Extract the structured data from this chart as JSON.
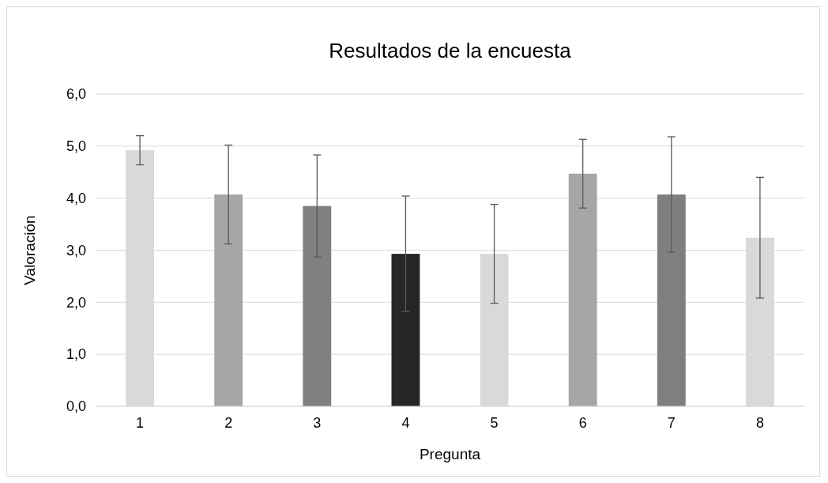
{
  "chart_data": {
    "type": "bar",
    "title": "Resultados de la encuesta",
    "xlabel": "Pregunta",
    "ylabel": "Valoración",
    "categories": [
      "1",
      "2",
      "3",
      "4",
      "5",
      "6",
      "7",
      "8"
    ],
    "values": [
      4.92,
      4.07,
      3.85,
      2.93,
      2.93,
      4.47,
      4.07,
      3.24
    ],
    "errors": [
      0.28,
      0.95,
      0.98,
      1.11,
      0.95,
      0.66,
      1.11,
      1.16
    ],
    "colors": [
      "#d9d9d9",
      "#a6a6a6",
      "#808080",
      "#262626",
      "#d9d9d9",
      "#a6a6a6",
      "#7f7f7f",
      "#d9d9d9"
    ],
    "ylim": [
      0,
      6
    ],
    "yticks": [
      {
        "value": 0,
        "label": "0,0"
      },
      {
        "value": 1,
        "label": "1,0"
      },
      {
        "value": 2,
        "label": "2,0"
      },
      {
        "value": 3,
        "label": "3,0"
      },
      {
        "value": 4,
        "label": "4,0"
      },
      {
        "value": 5,
        "label": "5,0"
      },
      {
        "value": 6,
        "label": "6,0"
      }
    ],
    "grid": "y"
  }
}
